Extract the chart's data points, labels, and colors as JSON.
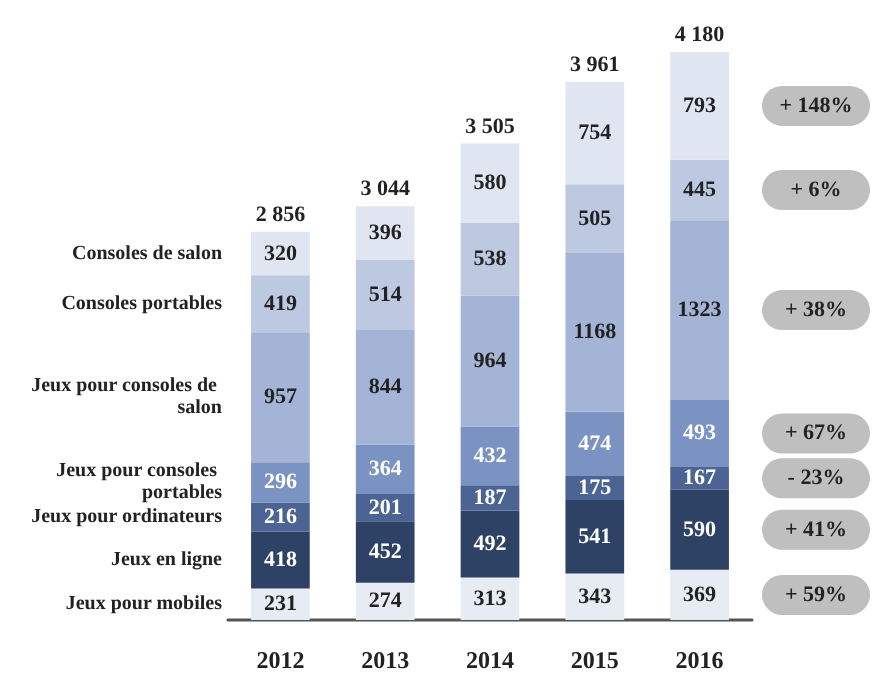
{
  "chart_data": {
    "type": "bar",
    "stacked": true,
    "data_labels": true,
    "categories": [
      "2012",
      "2013",
      "2014",
      "2015",
      "2016"
    ],
    "series": [
      {
        "name": "Jeux pour mobiles",
        "color": "#e6ebf4",
        "values": [
          231,
          274,
          313,
          343,
          369
        ]
      },
      {
        "name": "Jeux en ligne",
        "color": "#2e4266",
        "values": [
          418,
          452,
          492,
          541,
          590
        ]
      },
      {
        "name": "Jeux pour ordinateurs",
        "color": "#4b6494",
        "values": [
          216,
          201,
          187,
          175,
          167
        ]
      },
      {
        "name": "Jeux pour consoles portables",
        "color": "#7b93c2",
        "values": [
          296,
          364,
          432,
          474,
          493
        ]
      },
      {
        "name": "Jeux pour consoles de salon",
        "color": "#a3b4d6",
        "values": [
          957,
          844,
          964,
          1168,
          1323
        ]
      },
      {
        "name": "Consoles portables",
        "color": "#bdc9e1",
        "values": [
          419,
          514,
          538,
          505,
          445
        ]
      },
      {
        "name": "Consoles de salon",
        "color": "#dfe5f1",
        "values": [
          320,
          396,
          580,
          754,
          793
        ]
      }
    ],
    "totals": [
      "2 856",
      "3 044",
      "3 505",
      "3 961",
      "4 180"
    ],
    "annotations": [
      "+ 148%",
      "+ 6%",
      "+ 38%",
      "+ 67%",
      "- 23%",
      "+ 41%",
      "+ 59%"
    ],
    "legend": false
  }
}
